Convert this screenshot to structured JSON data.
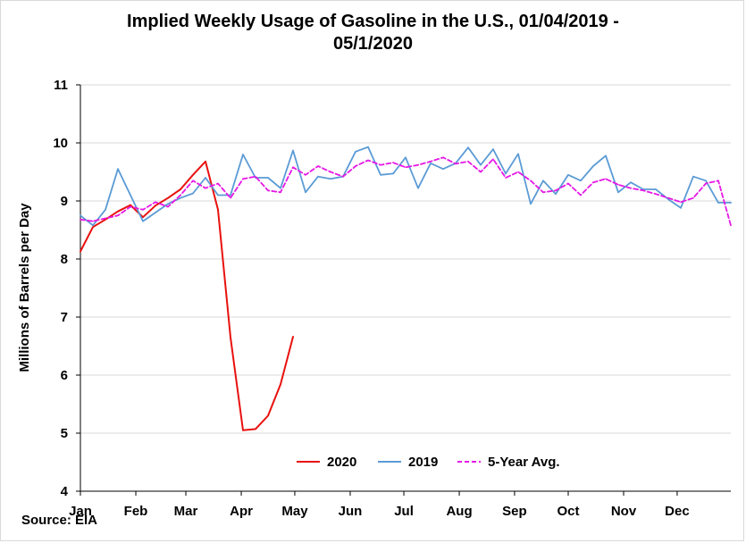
{
  "chart_data": {
    "type": "line",
    "title": "Implied Weekly Usage of Gasoline in the U.S., 01/04/2019 -",
    "title_line2": "05/1/2020",
    "xlabel": "",
    "ylabel": "Millions of Barrels per Day",
    "ylim": [
      4,
      11
    ],
    "yticks": [
      "4",
      "5",
      "6",
      "7",
      "8",
      "9",
      "10",
      "11"
    ],
    "xlim": [
      1,
      53
    ],
    "month_labels": [
      "Jan",
      "Feb",
      "Mar",
      "Apr",
      "May",
      "Jun",
      "Jul",
      "Aug",
      "Sep",
      "Oct",
      "Nov",
      "Dec"
    ],
    "month_weeks": [
      1,
      5.43,
      9.43,
      13.86,
      18.14,
      22.57,
      26.86,
      31.29,
      35.71,
      40,
      44.43,
      48.71
    ],
    "grid": "horizontal",
    "legend_position": "bottom-center",
    "series": [
      {
        "name": "2020",
        "color": "#e8110f",
        "dash": "solid",
        "x": [
          1,
          2,
          3,
          4,
          5,
          6,
          7,
          8,
          9,
          10,
          11,
          12,
          13,
          14,
          15,
          16,
          17,
          18
        ],
        "values": [
          8.13,
          8.55,
          8.68,
          8.82,
          8.93,
          8.72,
          8.92,
          9.05,
          9.2,
          9.45,
          9.68,
          8.85,
          6.65,
          5.05,
          5.07,
          5.3,
          5.84,
          6.66
        ]
      },
      {
        "name": "2019",
        "color": "#5b9bd5",
        "dash": "solid",
        "x": [
          1,
          2,
          3,
          4,
          5,
          6,
          7,
          8,
          9,
          10,
          11,
          12,
          13,
          14,
          15,
          16,
          17,
          18,
          19,
          20,
          21,
          22,
          23,
          24,
          25,
          26,
          27,
          28,
          29,
          30,
          31,
          32,
          33,
          34,
          35,
          36,
          37,
          38,
          39,
          40,
          41,
          42,
          43,
          44,
          45,
          46,
          47,
          48,
          49,
          50,
          51,
          52,
          53
        ],
        "values": [
          8.75,
          8.58,
          8.85,
          9.55,
          9.1,
          8.65,
          8.8,
          8.95,
          9.05,
          9.13,
          9.4,
          9.1,
          9.1,
          9.8,
          9.4,
          9.4,
          9.22,
          9.87,
          9.15,
          9.42,
          9.38,
          9.42,
          9.85,
          9.93,
          9.45,
          9.47,
          9.75,
          9.22,
          9.65,
          9.55,
          9.65,
          9.92,
          9.62,
          9.89,
          9.47,
          9.81,
          8.95,
          9.35,
          9.12,
          9.45,
          9.35,
          9.6,
          9.78,
          9.15,
          9.32,
          9.2,
          9.2,
          9.03,
          8.88,
          9.42,
          9.35,
          8.97,
          8.97
        ]
      },
      {
        "name": "5-Year Avg.",
        "color": "#e617e6",
        "dash": "dashed",
        "x": [
          1,
          2,
          3,
          4,
          5,
          6,
          7,
          8,
          9,
          10,
          11,
          12,
          13,
          14,
          15,
          16,
          17,
          18,
          19,
          20,
          21,
          22,
          23,
          24,
          25,
          26,
          27,
          28,
          29,
          30,
          31,
          32,
          33,
          34,
          35,
          36,
          37,
          38,
          39,
          40,
          41,
          42,
          43,
          44,
          45,
          46,
          47,
          48,
          49,
          50,
          51,
          52,
          53
        ],
        "values": [
          8.68,
          8.65,
          8.7,
          8.75,
          8.9,
          8.85,
          8.98,
          8.9,
          9.1,
          9.35,
          9.22,
          9.3,
          9.05,
          9.38,
          9.42,
          9.18,
          9.15,
          9.58,
          9.45,
          9.6,
          9.5,
          9.42,
          9.6,
          9.7,
          9.62,
          9.66,
          9.58,
          9.62,
          9.68,
          9.75,
          9.64,
          9.68,
          9.5,
          9.72,
          9.4,
          9.5,
          9.35,
          9.15,
          9.18,
          9.3,
          9.1,
          9.32,
          9.38,
          9.28,
          9.22,
          9.18,
          9.12,
          9.05,
          8.98,
          9.05,
          9.3,
          9.35,
          8.58
        ]
      }
    ]
  },
  "source": "Source: EIA"
}
